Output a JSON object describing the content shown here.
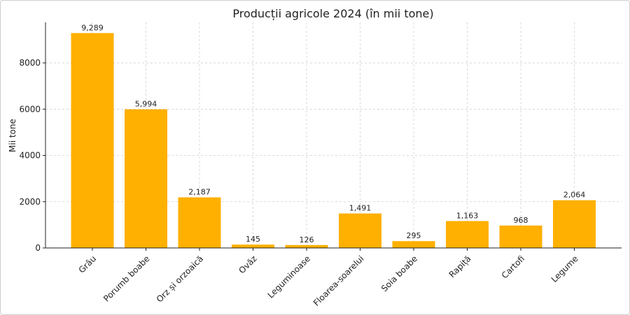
{
  "chart_data": {
    "type": "bar",
    "title": "Producții agricole 2024 (în mii tone)",
    "xlabel": "",
    "ylabel": "Mii tone",
    "categories": [
      "Grâu",
      "Porumb boabe",
      "Orz și orzoaică",
      "Ovăz",
      "Leguminoase",
      "Floarea-soarelui",
      "Soia boabe",
      "Rapiță",
      "Cartofi",
      "Legume"
    ],
    "values": [
      9289,
      5994,
      2187,
      145,
      126,
      1491,
      295,
      1163,
      968,
      2064
    ],
    "data_labels": [
      "9,289",
      "5,994",
      "2,187",
      "145",
      "126",
      "1,491",
      "295",
      "1,163",
      "968",
      "2,064"
    ],
    "yticks": [
      0,
      2000,
      4000,
      6000,
      8000
    ],
    "ylim": [
      0,
      9753
    ],
    "grid": true,
    "bar_color": "#FFB000"
  }
}
